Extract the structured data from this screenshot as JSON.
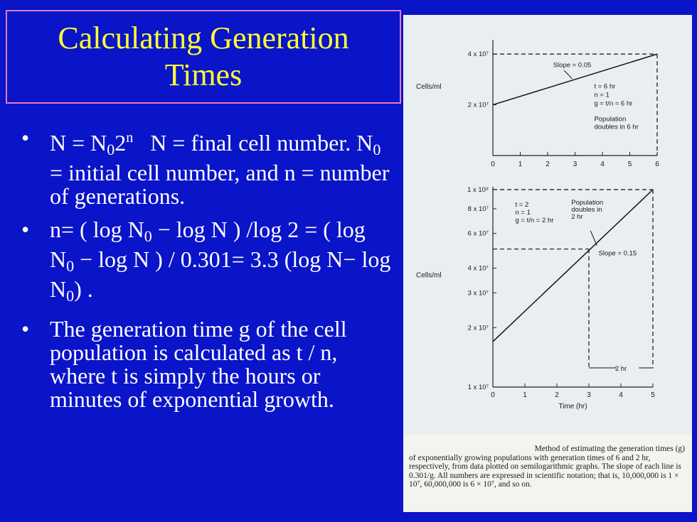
{
  "slide": {
    "title_line1": "Calculating Generation",
    "title_line2": "Times",
    "bullet_marker": "•",
    "b1": {
      "a": "N = N",
      "sub0": "0",
      "b": "2",
      "sup_n": "n",
      "c": "   N = final cell number. N",
      "sub1": "0",
      "d": " = initial cell number, and n = number of generations."
    },
    "b2": {
      "a": " n= ( log N",
      "sub0": "0",
      "b": " − log N ) /log 2 =  ( log N",
      "sub1": "0",
      "c": " − log N ) / 0.301= 3.3 (log N− log N",
      "sub2": "0",
      "d": ") ."
    },
    "b3": {
      "text": " The generation time g of the cell population is calculated as t / n, where t is simply the hours or minutes of exponential growth."
    }
  },
  "chart_data": [
    {
      "type": "line",
      "x": [
        0,
        6
      ],
      "xticks": [
        "0",
        "1",
        "2",
        "3",
        "4",
        "5",
        "6"
      ],
      "xlim": [
        0,
        6
      ],
      "ylabel": "Cells/ml",
      "yticks": [
        {
          "value": 20000000,
          "label": "2 x 10⁷"
        },
        {
          "value": 40000000,
          "label": "4 x 10⁷"
        }
      ],
      "yscale": "log",
      "series": [
        {
          "values": [
            20000000,
            40000000
          ]
        }
      ],
      "annotations": {
        "slope": "Slope = 0.05",
        "params": [
          "t = 6 hr",
          "n = 1",
          "g = t/n = 6 hr"
        ],
        "doubling": [
          "Population",
          "doubles in 6 hr"
        ]
      }
    },
    {
      "type": "line",
      "x": [
        0,
        5
      ],
      "xticks": [
        "0",
        "1",
        "2",
        "3",
        "4",
        "5"
      ],
      "xlim": [
        0,
        5
      ],
      "xlabel": "Time (hr)",
      "ylabel": "Cells/ml",
      "yscale": "log",
      "yticks": [
        {
          "value": 10000000,
          "label": "1 x 10⁷"
        },
        {
          "value": 20000000,
          "label": "2 x 10⁷"
        },
        {
          "value": 30000000,
          "label": "3 x 10⁷"
        },
        {
          "value": 40000000,
          "label": "4 x 10⁷"
        },
        {
          "value": 60000000,
          "label": "6 x 10⁷"
        },
        {
          "value": 80000000,
          "label": "8 x 10⁷"
        },
        {
          "value": 100000000,
          "label": "1 x 10⁸"
        }
      ],
      "series": [
        {
          "values": [
            17000000,
            100000000
          ]
        }
      ],
      "annotations": {
        "slope": "Slope = 0.15",
        "params": [
          "t = 2",
          "n = 1",
          "g = t/n = 2 hr"
        ],
        "doubling": [
          "Population",
          "doubles in",
          "2 hr"
        ],
        "interval": "2 hr"
      }
    }
  ],
  "caption": {
    "line1": "Method of estimating the generation times (g)",
    "rest": "of exponentially growing populations with generation times of 6 and 2 hr, respectively, from data plotted on semilogarithmic graphs. The slope of each line is 0.301/g. All numbers are expressed in scientific notation; that is, 10,000,000 is 1 × 10⁷, 60,000,000 is 6 × 10⁷, and so on."
  },
  "colors": {
    "background": "#0a14c8",
    "title": "#ffff33",
    "title_border": "#e878c8",
    "text": "#ffffff",
    "figure_bg": "#e9eef0"
  }
}
